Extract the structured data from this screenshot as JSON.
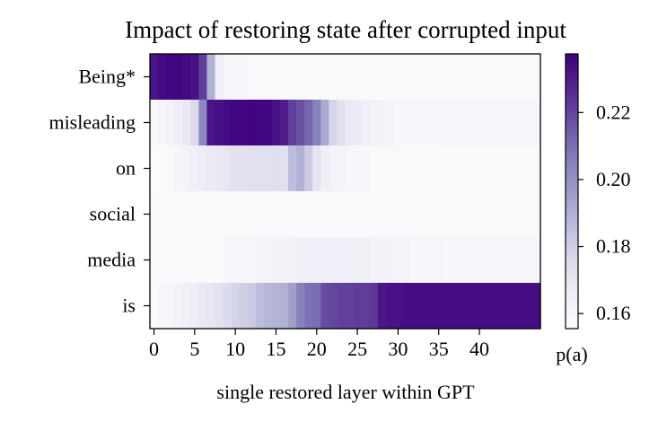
{
  "chart_data": {
    "type": "heatmap",
    "title": "Impact of restoring state after corrupted input",
    "xlabel": "single restored layer within GPT",
    "y_categories": [
      "Being*",
      "misleading",
      "on",
      "social",
      "media",
      "is"
    ],
    "x_ticks": [
      0,
      5,
      10,
      15,
      20,
      25,
      30,
      35,
      40
    ],
    "x_range": [
      0,
      47
    ],
    "colorbar": {
      "label": "p(a)",
      "range": [
        0.1555,
        0.2375
      ],
      "ticks": [
        0.16,
        0.18,
        0.2,
        0.22
      ],
      "tick_labels": [
        "0.16",
        "0.18",
        "0.20",
        "0.22"
      ],
      "colormap": "Purples",
      "low_color": "#fcfbfd",
      "high_color": "#3f007d"
    },
    "values": [
      [
        0.232,
        0.235,
        0.236,
        0.236,
        0.235,
        0.233,
        0.222,
        0.19,
        0.165,
        0.16,
        0.159,
        0.159,
        0.158,
        0.158,
        0.158,
        0.158,
        0.158,
        0.158,
        0.158,
        0.158,
        0.158,
        0.158,
        0.158,
        0.158,
        0.158,
        0.158,
        0.158,
        0.158,
        0.158,
        0.158,
        0.158,
        0.158,
        0.158,
        0.158,
        0.158,
        0.158,
        0.158,
        0.158,
        0.158,
        0.158,
        0.158,
        0.158,
        0.158,
        0.158,
        0.158,
        0.158,
        0.158,
        0.158
      ],
      [
        0.158,
        0.16,
        0.162,
        0.165,
        0.168,
        0.176,
        0.203,
        0.232,
        0.233,
        0.235,
        0.236,
        0.236,
        0.237,
        0.236,
        0.236,
        0.233,
        0.23,
        0.221,
        0.217,
        0.212,
        0.205,
        0.192,
        0.178,
        0.172,
        0.168,
        0.166,
        0.165,
        0.163,
        0.162,
        0.161,
        0.16,
        0.16,
        0.16,
        0.16,
        0.16,
        0.159,
        0.159,
        0.159,
        0.159,
        0.159,
        0.159,
        0.159,
        0.159,
        0.159,
        0.159,
        0.159,
        0.159,
        0.159
      ],
      [
        0.156,
        0.157,
        0.158,
        0.16,
        0.163,
        0.165,
        0.166,
        0.167,
        0.168,
        0.17,
        0.172,
        0.172,
        0.173,
        0.173,
        0.173,
        0.174,
        0.173,
        0.186,
        0.19,
        0.181,
        0.17,
        0.165,
        0.162,
        0.161,
        0.16,
        0.159,
        0.159,
        0.158,
        0.158,
        0.158,
        0.158,
        0.158,
        0.158,
        0.158,
        0.158,
        0.158,
        0.158,
        0.158,
        0.158,
        0.158,
        0.158,
        0.158,
        0.158,
        0.158,
        0.158,
        0.158,
        0.158,
        0.158
      ],
      [
        0.157,
        0.158,
        0.158,
        0.158,
        0.158,
        0.158,
        0.158,
        0.158,
        0.158,
        0.158,
        0.158,
        0.158,
        0.158,
        0.158,
        0.158,
        0.158,
        0.158,
        0.158,
        0.158,
        0.158,
        0.158,
        0.158,
        0.158,
        0.158,
        0.158,
        0.158,
        0.158,
        0.158,
        0.158,
        0.158,
        0.158,
        0.158,
        0.158,
        0.158,
        0.158,
        0.158,
        0.158,
        0.158,
        0.158,
        0.158,
        0.158,
        0.158,
        0.158,
        0.158,
        0.158,
        0.158,
        0.158,
        0.158
      ],
      [
        0.157,
        0.158,
        0.158,
        0.158,
        0.158,
        0.158,
        0.158,
        0.158,
        0.158,
        0.159,
        0.159,
        0.16,
        0.16,
        0.161,
        0.161,
        0.162,
        0.162,
        0.163,
        0.164,
        0.164,
        0.165,
        0.165,
        0.165,
        0.165,
        0.165,
        0.164,
        0.164,
        0.163,
        0.162,
        0.162,
        0.161,
        0.161,
        0.16,
        0.16,
        0.16,
        0.16,
        0.159,
        0.159,
        0.159,
        0.159,
        0.159,
        0.159,
        0.159,
        0.159,
        0.159,
        0.159,
        0.159,
        0.159
      ],
      [
        0.158,
        0.159,
        0.16,
        0.162,
        0.164,
        0.166,
        0.168,
        0.17,
        0.172,
        0.175,
        0.178,
        0.18,
        0.182,
        0.186,
        0.188,
        0.189,
        0.19,
        0.195,
        0.205,
        0.209,
        0.21,
        0.218,
        0.22,
        0.221,
        0.221,
        0.222,
        0.222,
        0.223,
        0.232,
        0.233,
        0.233,
        0.234,
        0.234,
        0.234,
        0.234,
        0.234,
        0.234,
        0.234,
        0.234,
        0.234,
        0.234,
        0.234,
        0.234,
        0.234,
        0.234,
        0.234,
        0.234,
        0.234
      ]
    ]
  }
}
